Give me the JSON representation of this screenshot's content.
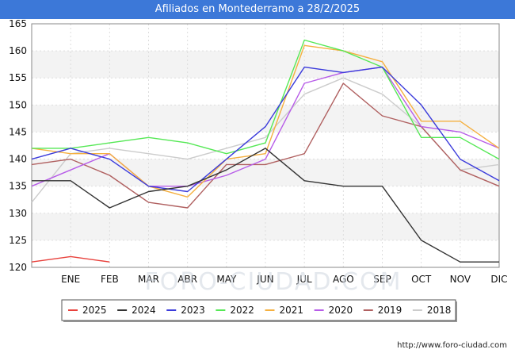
{
  "title": "Afiliados en Montederramo a 28/2/2025",
  "footer_url": "http://www.foro-ciudad.com",
  "watermark": "FORO-CIUDAD.COM",
  "chart_data": {
    "type": "line",
    "title": "Afiliados en Montederramo a 28/2/2025",
    "xlabel": "",
    "ylabel": "",
    "categories": [
      "",
      "ENE",
      "FEB",
      "MAR",
      "ABR",
      "MAY",
      "JUN",
      "JUL",
      "AGO",
      "SEP",
      "OCT",
      "NOV",
      "DIC"
    ],
    "ylim": [
      120,
      165
    ],
    "yticks": [
      120,
      125,
      130,
      135,
      140,
      145,
      150,
      155,
      160,
      165
    ],
    "grid": true,
    "legend_position": "bottom",
    "series": [
      {
        "name": "2025",
        "color": "#e8413c",
        "values": [
          121,
          122,
          121,
          null,
          null,
          null,
          null,
          null,
          null,
          null,
          null,
          null,
          null
        ]
      },
      {
        "name": "2024",
        "color": "#333333",
        "values": [
          136,
          136,
          131,
          134,
          135,
          138,
          142,
          136,
          135,
          135,
          125,
          121,
          121
        ]
      },
      {
        "name": "2023",
        "color": "#3b3bdb",
        "values": [
          140,
          142,
          140,
          135,
          134,
          140,
          146,
          157,
          156,
          157,
          150,
          140,
          136
        ]
      },
      {
        "name": "2022",
        "color": "#55e855",
        "values": [
          142,
          142,
          143,
          144,
          143,
          141,
          143,
          162,
          160,
          157,
          144,
          144,
          140
        ]
      },
      {
        "name": "2021",
        "color": "#f5b040",
        "values": [
          142,
          141,
          141,
          135,
          133,
          140,
          141,
          161,
          160,
          158,
          147,
          147,
          142
        ]
      },
      {
        "name": "2020",
        "color": "#b75ce8",
        "values": [
          135,
          138,
          141,
          135,
          135,
          137,
          140,
          154,
          156,
          157,
          146,
          145,
          142
        ]
      },
      {
        "name": "2019",
        "color": "#b06060",
        "values": [
          139,
          140,
          137,
          132,
          131,
          139,
          139,
          141,
          154,
          148,
          146,
          138,
          135
        ]
      },
      {
        "name": "2018",
        "color": "#cccccc",
        "values": [
          132,
          141,
          142,
          141,
          140,
          142,
          144,
          152,
          155,
          152,
          146,
          138,
          139
        ]
      }
    ]
  }
}
